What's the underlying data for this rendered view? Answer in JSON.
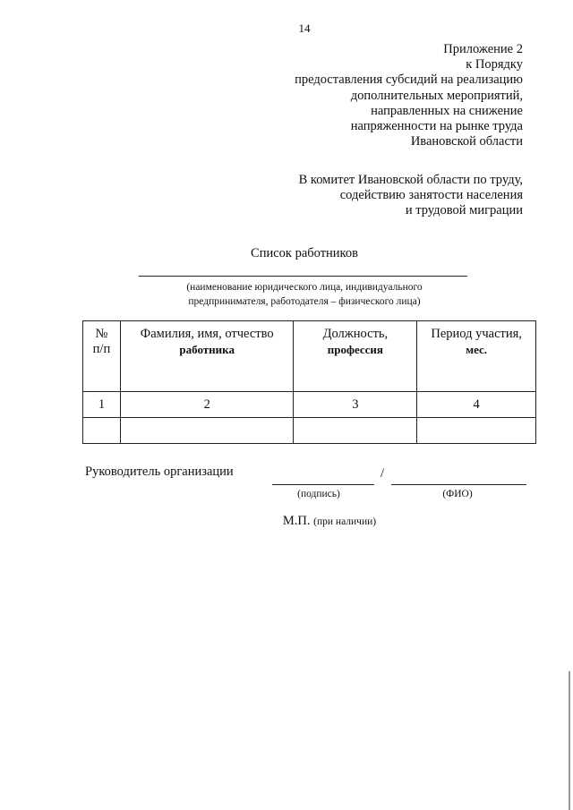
{
  "page_number": "14",
  "appendix": [
    "Приложение 2",
    "к Порядку",
    "предоставления субсидий на реализацию",
    "дополнительных мероприятий,",
    "направленных на снижение",
    "напряженности на рынке труда",
    "Ивановской области"
  ],
  "addressee": [
    "В комитет Ивановской области по труду,",
    "содействию занятости населения",
    "и трудовой миграции"
  ],
  "title": "Список работников",
  "org_caption": [
    "(наименование юридического лица, индивидуального",
    "предпринимателя, работодателя – физического лица)"
  ],
  "table": {
    "headers": [
      {
        "line1": "№",
        "line2": "п/п"
      },
      {
        "line1": "Фамилия, имя, отчество",
        "line2": "работника"
      },
      {
        "line1": "Должность,",
        "line2": "профессия"
      },
      {
        "line1": "Период участия,",
        "line2": "мес."
      }
    ],
    "number_row": [
      "1",
      "2",
      "3",
      "4"
    ],
    "empty_row": [
      "",
      "",
      "",
      ""
    ]
  },
  "signature": {
    "label": "Руководитель организации",
    "separator": "/",
    "sign_caption": "(подпись)",
    "name_caption": "(ФИО)",
    "stamp_prefix": "М.П.",
    "stamp_note": "(при наличии)"
  }
}
